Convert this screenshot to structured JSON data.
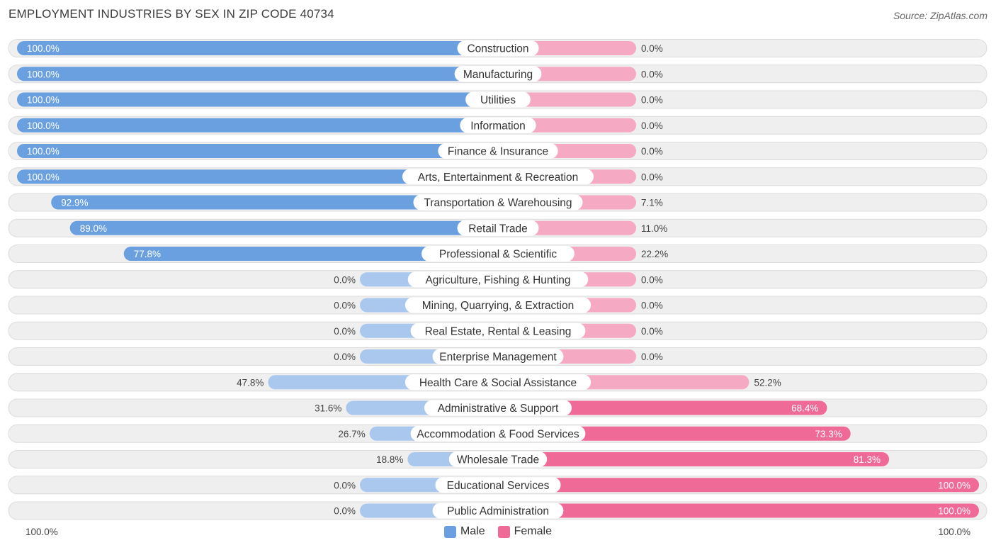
{
  "header": {
    "title": "EMPLOYMENT INDUSTRIES BY SEX IN ZIP CODE 40734",
    "source": "Source: ZipAtlas.com"
  },
  "colors": {
    "male_full": "#6a9fe0",
    "male_light": "#aac8ee",
    "female_full": "#f06a98",
    "female_light": "#f5a9c2",
    "row_bg": "#efefef"
  },
  "legend": {
    "male": "Male",
    "female": "Female"
  },
  "axis": {
    "left": "100.0%",
    "right": "100.0%"
  },
  "chart_data": {
    "type": "bar",
    "orientation": "horizontal-diverging",
    "title": "EMPLOYMENT INDUSTRIES BY SEX IN ZIP CODE 40734",
    "categories": [
      "Construction",
      "Manufacturing",
      "Utilities",
      "Information",
      "Finance & Insurance",
      "Arts, Entertainment & Recreation",
      "Transportation & Warehousing",
      "Retail Trade",
      "Professional & Scientific",
      "Agriculture, Fishing & Hunting",
      "Mining, Quarrying, & Extraction",
      "Real Estate, Rental & Leasing",
      "Enterprise Management",
      "Health Care & Social Assistance",
      "Administrative & Support",
      "Accommodation & Food Services",
      "Wholesale Trade",
      "Educational Services",
      "Public Administration"
    ],
    "series": [
      {
        "name": "Male",
        "values": [
          100.0,
          100.0,
          100.0,
          100.0,
          100.0,
          100.0,
          92.9,
          89.0,
          77.8,
          0.0,
          0.0,
          0.0,
          0.0,
          47.8,
          31.6,
          26.7,
          18.8,
          0.0,
          0.0
        ],
        "labels": [
          "100.0%",
          "100.0%",
          "100.0%",
          "100.0%",
          "100.0%",
          "100.0%",
          "92.9%",
          "89.0%",
          "77.8%",
          "0.0%",
          "0.0%",
          "0.0%",
          "0.0%",
          "47.8%",
          "31.6%",
          "26.7%",
          "18.8%",
          "0.0%",
          "0.0%"
        ]
      },
      {
        "name": "Female",
        "values": [
          0.0,
          0.0,
          0.0,
          0.0,
          0.0,
          0.0,
          7.1,
          11.0,
          22.2,
          0.0,
          0.0,
          0.0,
          0.0,
          52.2,
          68.4,
          73.3,
          81.3,
          100.0,
          100.0
        ],
        "labels": [
          "0.0%",
          "0.0%",
          "0.0%",
          "0.0%",
          "0.0%",
          "0.0%",
          "7.1%",
          "11.0%",
          "22.2%",
          "0.0%",
          "0.0%",
          "0.0%",
          "0.0%",
          "52.2%",
          "68.4%",
          "73.3%",
          "81.3%",
          "100.0%",
          "100.0%"
        ]
      }
    ],
    "xlim": [
      -100,
      100
    ],
    "legend_position": "bottom-center"
  }
}
